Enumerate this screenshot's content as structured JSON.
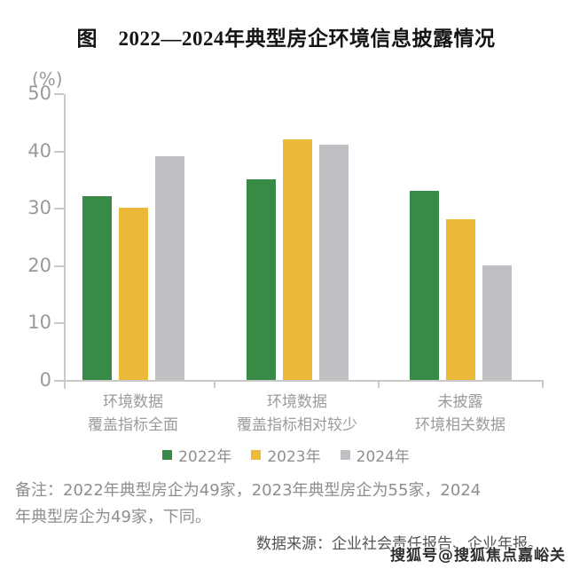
{
  "title": "图　2022—2024年典型房企环境信息披露情况",
  "chart_data": {
    "type": "bar",
    "title": "图　2022—2024年典型房企环境信息披露情况",
    "xlabel": "",
    "ylabel": "(%)",
    "ylim": [
      0,
      50
    ],
    "yticks": [
      0,
      10,
      20,
      30,
      40,
      50
    ],
    "grid": false,
    "legend_position": "bottom",
    "categories": [
      "环境数据\n覆盖指标全面",
      "环境数据\n覆盖指标相对较少",
      "未披露\n环境相关数据"
    ],
    "series": [
      {
        "name": "2022年",
        "color": "#388a46",
        "values": [
          32,
          35,
          33
        ]
      },
      {
        "name": "2023年",
        "color": "#ecba3b",
        "values": [
          30,
          42,
          28
        ]
      },
      {
        "name": "2024年",
        "color": "#c0c0c4",
        "values": [
          39,
          41,
          20
        ]
      }
    ],
    "axis_color": "#c9c9ca",
    "tick_label_color": "#9a9a9a",
    "category_label_color": "#9b9b9b"
  },
  "footer": {
    "note_lines": [
      "备注：2022年典型房企为49家，2023年典型房企为55家，2024",
      "年典型房企为49家，下同。"
    ],
    "source": "数据来源：企业社会责任报告、企业年报。",
    "watermark": "搜狐号@搜狐焦点嘉峪关站"
  }
}
